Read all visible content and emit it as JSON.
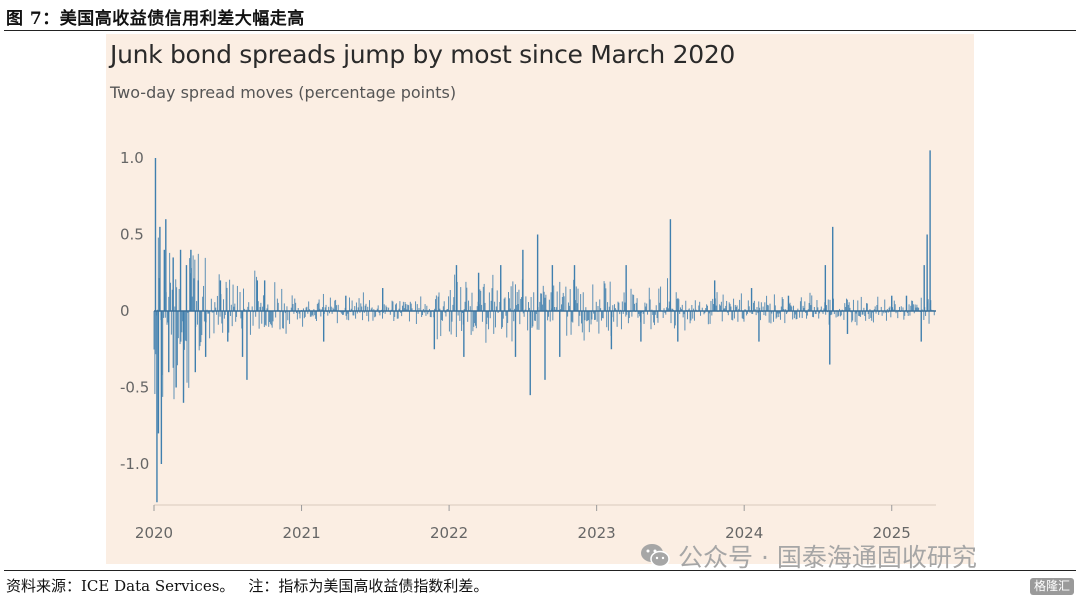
{
  "caption": "图 7：美国高收益债信用利差大幅走高",
  "source": {
    "label": "资料来源：ICE Data Services。",
    "note": "注：指标为美国高收益债指数利差。"
  },
  "watermark": {
    "text": "公众号 · 国泰海通固收研究",
    "icon": "wechat-icon"
  },
  "corner_logo": "格隆汇",
  "colors": {
    "panel_bg": "#fbeee3",
    "bar": "#3f7fae",
    "axis": "#9a9a9a",
    "tick_text": "#666666"
  },
  "chart_data": {
    "type": "bar",
    "title": "Junk bond spreads jump by most since March 2020",
    "subtitle": "Two-day spread moves (percentage points)",
    "xlabel": "",
    "ylabel": "",
    "ylim": [
      -1.3,
      1.1
    ],
    "yticks": [
      1.0,
      0.5,
      0,
      -0.5,
      -1.0
    ],
    "ytick_labels": [
      "1.0",
      "0.5",
      "0",
      "-0.5",
      "-1.0"
    ],
    "xlim": [
      2020.0,
      2025.3
    ],
    "xticks": [
      2020,
      2021,
      2022,
      2023,
      2024,
      2025
    ],
    "xtick_labels": [
      "2020",
      "2021",
      "2022",
      "2023",
      "2024",
      "2025"
    ],
    "grid": false,
    "legend": "none",
    "series": [
      {
        "values_note": "approximate notable two-day moves",
        "points": [
          {
            "x": 2020.01,
            "y": 1.0
          },
          {
            "x": 2020.02,
            "y": -1.25
          },
          {
            "x": 2020.03,
            "y": -0.8
          },
          {
            "x": 2020.04,
            "y": 0.55
          },
          {
            "x": 2020.05,
            "y": -1.0
          },
          {
            "x": 2020.07,
            "y": 0.4
          },
          {
            "x": 2020.08,
            "y": 0.6
          },
          {
            "x": 2020.1,
            "y": -0.4
          },
          {
            "x": 2020.13,
            "y": 0.35
          },
          {
            "x": 2020.15,
            "y": -0.5
          },
          {
            "x": 2020.18,
            "y": 0.4
          },
          {
            "x": 2020.2,
            "y": -0.6
          },
          {
            "x": 2020.22,
            "y": 0.3
          },
          {
            "x": 2020.25,
            "y": 0.4
          },
          {
            "x": 2020.28,
            "y": -0.4
          },
          {
            "x": 2020.3,
            "y": 0.2
          },
          {
            "x": 2020.35,
            "y": -0.3
          },
          {
            "x": 2020.45,
            "y": 0.2
          },
          {
            "x": 2020.5,
            "y": -0.2
          },
          {
            "x": 2020.6,
            "y": -0.3
          },
          {
            "x": 2020.63,
            "y": -0.45
          },
          {
            "x": 2020.7,
            "y": 0.2
          },
          {
            "x": 2020.75,
            "y": 0.2
          },
          {
            "x": 2021.15,
            "y": -0.2
          },
          {
            "x": 2021.3,
            "y": 0.1
          },
          {
            "x": 2021.55,
            "y": 0.15
          },
          {
            "x": 2021.9,
            "y": -0.25
          },
          {
            "x": 2022.05,
            "y": 0.3
          },
          {
            "x": 2022.1,
            "y": -0.3
          },
          {
            "x": 2022.2,
            "y": 0.25
          },
          {
            "x": 2022.35,
            "y": 0.3
          },
          {
            "x": 2022.45,
            "y": -0.3
          },
          {
            "x": 2022.5,
            "y": 0.4
          },
          {
            "x": 2022.55,
            "y": -0.55
          },
          {
            "x": 2022.6,
            "y": 0.5
          },
          {
            "x": 2022.65,
            "y": -0.45
          },
          {
            "x": 2022.7,
            "y": 0.3
          },
          {
            "x": 2022.75,
            "y": -0.3
          },
          {
            "x": 2022.85,
            "y": 0.3
          },
          {
            "x": 2023.1,
            "y": -0.25
          },
          {
            "x": 2023.2,
            "y": 0.3
          },
          {
            "x": 2023.3,
            "y": -0.2
          },
          {
            "x": 2023.5,
            "y": 0.6
          },
          {
            "x": 2023.55,
            "y": -0.2
          },
          {
            "x": 2023.8,
            "y": 0.2
          },
          {
            "x": 2024.05,
            "y": 0.15
          },
          {
            "x": 2024.1,
            "y": -0.2
          },
          {
            "x": 2024.3,
            "y": 0.1
          },
          {
            "x": 2024.55,
            "y": 0.3
          },
          {
            "x": 2024.58,
            "y": -0.35
          },
          {
            "x": 2024.6,
            "y": 0.55
          },
          {
            "x": 2024.7,
            "y": -0.15
          },
          {
            "x": 2025.0,
            "y": 0.1
          },
          {
            "x": 2025.1,
            "y": 0.1
          },
          {
            "x": 2025.2,
            "y": -0.2
          },
          {
            "x": 2025.22,
            "y": 0.3
          },
          {
            "x": 2025.24,
            "y": 0.5
          },
          {
            "x": 2025.26,
            "y": 1.05
          }
        ]
      }
    ]
  }
}
